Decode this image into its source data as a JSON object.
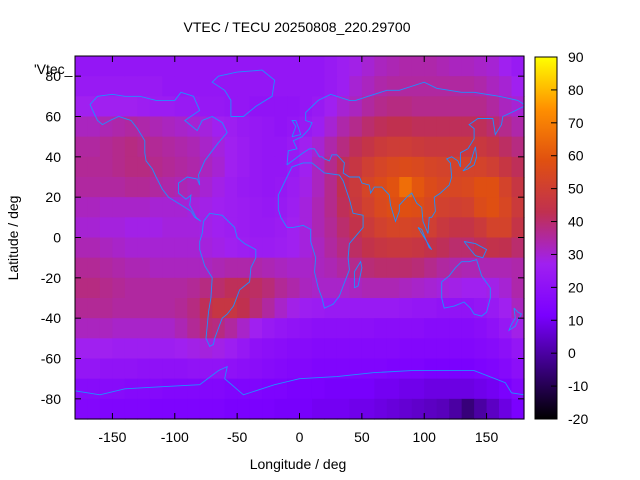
{
  "chart_data": {
    "type": "heatmap",
    "title": "VTEC / TECU 20250808_220.29700",
    "xlabel": "Longitude / deg",
    "ylabel": "Latitude / deg",
    "series_key": "'Vtec_",
    "xlim": [
      -180,
      180
    ],
    "ylim": [
      -90,
      90
    ],
    "zlim": [
      -20,
      90
    ],
    "xticks": [
      -150,
      -100,
      -50,
      0,
      50,
      100,
      150
    ],
    "yticks": [
      -80,
      -60,
      -40,
      -20,
      0,
      20,
      40,
      60,
      80
    ],
    "colorbar_ticks": [
      -20,
      -10,
      0,
      10,
      20,
      30,
      40,
      50,
      60,
      70,
      80,
      90
    ],
    "colormap": [
      "#000000",
      "#3a0080",
      "#7a00ff",
      "#a020f0",
      "#c03050",
      "#e05010",
      "#ff9000",
      "#ffff00"
    ],
    "coastline_color": "#1e90ff",
    "grid": false,
    "colorbar": "right",
    "lon": [
      -175,
      -165,
      -155,
      -145,
      -135,
      -125,
      -115,
      -105,
      -95,
      -85,
      -75,
      -65,
      -55,
      -45,
      -35,
      -25,
      -15,
      -5,
      5,
      15,
      25,
      35,
      45,
      55,
      65,
      75,
      85,
      95,
      105,
      115,
      125,
      135,
      145,
      155,
      165,
      175
    ],
    "lat": [
      85,
      75,
      65,
      55,
      45,
      35,
      25,
      15,
      5,
      -5,
      -15,
      -25,
      -35,
      -45,
      -55,
      -65,
      -75,
      -85
    ],
    "vtec": [
      [
        22,
        22,
        22,
        22,
        22,
        22,
        22,
        22,
        22,
        22,
        22,
        22,
        22,
        22,
        22,
        22,
        22,
        22,
        22,
        22,
        24,
        26,
        28,
        30,
        32,
        33,
        34,
        34,
        34,
        33,
        32,
        32,
        31,
        30,
        27,
        24
      ],
      [
        24,
        24,
        24,
        24,
        24,
        24,
        24,
        22,
        22,
        22,
        22,
        22,
        22,
        22,
        22,
        22,
        22,
        22,
        22,
        22,
        24,
        26,
        30,
        32,
        34,
        35,
        35,
        35,
        35,
        35,
        35,
        35,
        34,
        32,
        30,
        27
      ],
      [
        27,
        27,
        27,
        27,
        27,
        26,
        25,
        25,
        24,
        24,
        23,
        23,
        22,
        22,
        21,
        21,
        21,
        21,
        22,
        24,
        27,
        30,
        32,
        35,
        37,
        38,
        38,
        37,
        37,
        37,
        37,
        37,
        37,
        35,
        32,
        30
      ],
      [
        32,
        32,
        33,
        34,
        35,
        34,
        33,
        32,
        31,
        30,
        29,
        27,
        26,
        24,
        23,
        22,
        21,
        22,
        24,
        26,
        30,
        34,
        37,
        40,
        42,
        43,
        43,
        42,
        42,
        42,
        42,
        42,
        42,
        40,
        37,
        34
      ],
      [
        35,
        35,
        36,
        37,
        38,
        37,
        36,
        35,
        34,
        33,
        31,
        29,
        27,
        25,
        23,
        22,
        22,
        24,
        27,
        30,
        34,
        38,
        42,
        45,
        48,
        49,
        49,
        48,
        47,
        47,
        47,
        47,
        47,
        45,
        41,
        38
      ],
      [
        36,
        36,
        36,
        37,
        38,
        38,
        37,
        36,
        35,
        34,
        32,
        30,
        27,
        25,
        23,
        22,
        22,
        24,
        27,
        32,
        37,
        42,
        46,
        50,
        53,
        55,
        56,
        55,
        53,
        52,
        52,
        52,
        52,
        50,
        46,
        42
      ],
      [
        35,
        35,
        35,
        35,
        36,
        36,
        35,
        34,
        33,
        32,
        30,
        28,
        26,
        24,
        23,
        22,
        23,
        25,
        28,
        32,
        37,
        43,
        48,
        53,
        56,
        59,
        66,
        60,
        56,
        54,
        54,
        55,
        58,
        58,
        52,
        46
      ],
      [
        32,
        32,
        31,
        31,
        31,
        31,
        30,
        30,
        30,
        29,
        28,
        27,
        26,
        25,
        24,
        23,
        24,
        26,
        29,
        33,
        37,
        42,
        47,
        51,
        55,
        57,
        58,
        57,
        54,
        51,
        50,
        51,
        56,
        58,
        54,
        48
      ],
      [
        30,
        30,
        29,
        29,
        28,
        28,
        28,
        29,
        29,
        29,
        28,
        27,
        26,
        25,
        24,
        24,
        25,
        27,
        29,
        33,
        36,
        40,
        44,
        48,
        51,
        53,
        53,
        52,
        50,
        47,
        45,
        45,
        48,
        52,
        52,
        45
      ],
      [
        33,
        33,
        32,
        31,
        30,
        30,
        30,
        30,
        30,
        30,
        29,
        28,
        27,
        26,
        25,
        25,
        26,
        27,
        29,
        32,
        35,
        38,
        41,
        44,
        46,
        47,
        47,
        46,
        44,
        42,
        40,
        40,
        42,
        44,
        43,
        40
      ],
      [
        36,
        36,
        35,
        34,
        33,
        33,
        32,
        32,
        32,
        32,
        32,
        33,
        34,
        34,
        34,
        33,
        32,
        31,
        31,
        32,
        33,
        35,
        37,
        39,
        40,
        40,
        40,
        39,
        37,
        35,
        34,
        33,
        33,
        33,
        33,
        34
      ],
      [
        38,
        38,
        37,
        36,
        35,
        35,
        35,
        35,
        35,
        36,
        38,
        40,
        42,
        42,
        41,
        39,
        36,
        34,
        32,
        31,
        31,
        31,
        32,
        33,
        33,
        33,
        32,
        31,
        30,
        29,
        28,
        27,
        27,
        28,
        30,
        34
      ],
      [
        36,
        36,
        36,
        35,
        35,
        35,
        35,
        35,
        36,
        38,
        42,
        46,
        46,
        43,
        39,
        35,
        31,
        28,
        26,
        25,
        24,
        24,
        24,
        24,
        24,
        24,
        23,
        22,
        22,
        21,
        21,
        21,
        22,
        24,
        27,
        32
      ],
      [
        32,
        32,
        32,
        31,
        31,
        31,
        31,
        31,
        33,
        36,
        39,
        38,
        35,
        31,
        27,
        24,
        22,
        21,
        20,
        19,
        19,
        19,
        19,
        19,
        18,
        18,
        18,
        18,
        17,
        17,
        17,
        17,
        18,
        20,
        23,
        28
      ],
      [
        27,
        27,
        27,
        26,
        26,
        26,
        26,
        26,
        27,
        28,
        29,
        28,
        26,
        23,
        20,
        19,
        18,
        17,
        17,
        16,
        16,
        16,
        16,
        16,
        16,
        16,
        15,
        15,
        15,
        15,
        15,
        15,
        16,
        17,
        19,
        22
      ],
      [
        22,
        22,
        21,
        21,
        21,
        20,
        20,
        20,
        20,
        21,
        21,
        21,
        20,
        19,
        18,
        17,
        16,
        15,
        15,
        14,
        14,
        14,
        14,
        14,
        14,
        13,
        13,
        13,
        12,
        12,
        12,
        12,
        13,
        14,
        16,
        19
      ],
      [
        17,
        17,
        17,
        17,
        16,
        16,
        16,
        15,
        15,
        15,
        15,
        15,
        14,
        14,
        14,
        13,
        13,
        12,
        12,
        12,
        11,
        11,
        11,
        11,
        10,
        10,
        9,
        9,
        8,
        8,
        8,
        8,
        9,
        10,
        12,
        15
      ],
      [
        15,
        15,
        14,
        14,
        14,
        14,
        13,
        13,
        13,
        13,
        13,
        13,
        12,
        12,
        12,
        12,
        11,
        11,
        11,
        10,
        10,
        10,
        9,
        9,
        8,
        7,
        6,
        5,
        4,
        3,
        0,
        -5,
        0,
        4,
        8,
        12
      ]
    ]
  }
}
